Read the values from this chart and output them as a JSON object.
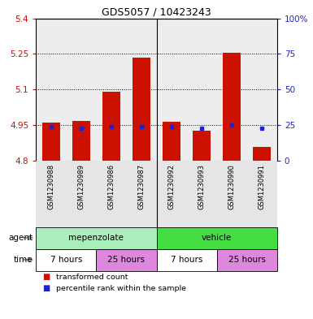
{
  "title": "GDS5057 / 10423243",
  "samples": [
    "GSM1230988",
    "GSM1230989",
    "GSM1230986",
    "GSM1230987",
    "GSM1230992",
    "GSM1230993",
    "GSM1230990",
    "GSM1230991"
  ],
  "bar_tops": [
    4.958,
    4.968,
    5.09,
    5.235,
    4.962,
    4.926,
    5.255,
    4.855
  ],
  "bar_bottom": 4.8,
  "blue_values": [
    4.942,
    4.937,
    4.942,
    4.943,
    4.942,
    4.934,
    4.948,
    4.936
  ],
  "ylim_left": [
    4.8,
    5.4
  ],
  "yticks_left": [
    4.8,
    4.95,
    5.1,
    5.25,
    5.4
  ],
  "ytick_labels_left": [
    "4.8",
    "4.95",
    "5.1",
    "5.25",
    "5.4"
  ],
  "yticks_right": [
    0,
    25,
    50,
    75,
    100
  ],
  "ytick_labels_right": [
    "0",
    "25",
    "50",
    "75",
    "100%"
  ],
  "bar_color": "#cc1100",
  "blue_color": "#2222cc",
  "col_bg_color": "#cccccc",
  "agent_groups": [
    {
      "label": "mepenzolate",
      "color": "#aaeebb",
      "span": [
        0,
        4
      ]
    },
    {
      "label": "vehicle",
      "color": "#44dd44",
      "span": [
        4,
        8
      ]
    }
  ],
  "time_groups": [
    {
      "label": "7 hours",
      "color": "#ffffff",
      "span": [
        0,
        2
      ]
    },
    {
      "label": "25 hours",
      "color": "#dd88dd",
      "span": [
        2,
        4
      ]
    },
    {
      "label": "7 hours",
      "color": "#ffffff",
      "span": [
        4,
        6
      ]
    },
    {
      "label": "25 hours",
      "color": "#dd88dd",
      "span": [
        6,
        8
      ]
    }
  ],
  "legend_items": [
    {
      "color": "#cc1100",
      "label": "transformed count"
    },
    {
      "color": "#2222cc",
      "label": "percentile rank within the sample"
    }
  ],
  "dotted_lines": [
    4.95,
    5.1,
    5.25
  ],
  "separator_col": 4,
  "bar_width": 0.6,
  "n_samples": 8
}
